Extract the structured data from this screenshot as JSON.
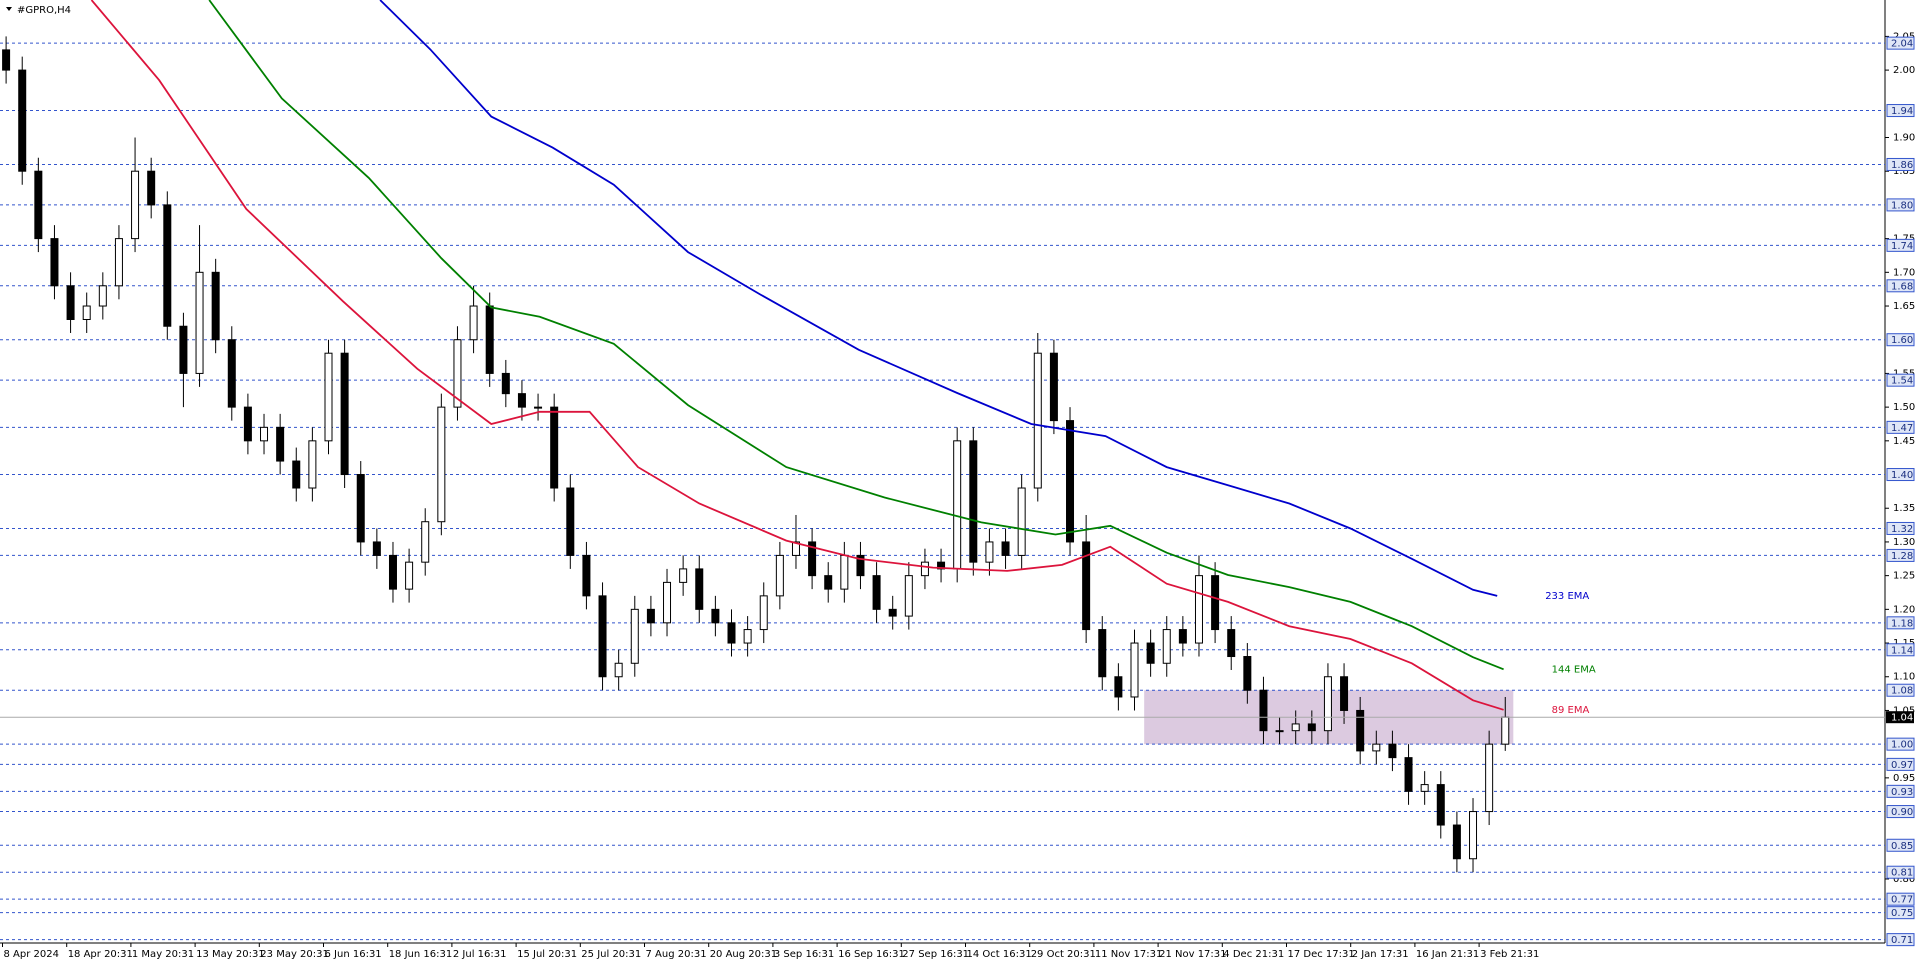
{
  "chart_data": {
    "type": "candlestick",
    "title": "#GPRO,H4",
    "open": [
      2.03,
      2.0,
      1.85,
      1.75,
      1.68,
      1.63,
      1.65,
      1.68,
      1.75,
      1.85,
      1.8,
      1.62,
      1.55,
      1.7,
      1.6,
      1.5,
      1.45,
      1.47,
      1.42,
      1.38,
      1.45,
      1.58,
      1.4,
      1.3,
      1.28,
      1.23,
      1.27,
      1.33,
      1.5,
      1.6,
      1.65,
      1.55,
      1.52,
      1.5,
      1.5,
      1.38,
      1.28,
      1.22,
      1.1,
      1.12,
      1.2,
      1.18,
      1.24,
      1.26,
      1.2,
      1.18,
      1.15,
      1.17,
      1.22,
      1.28,
      1.3,
      1.25,
      1.23,
      1.28,
      1.25,
      1.2,
      1.19,
      1.25,
      1.27,
      1.26,
      1.45,
      1.27,
      1.3,
      1.28,
      1.38,
      1.58,
      1.48,
      1.3,
      1.17,
      1.1,
      1.07,
      1.15,
      1.12,
      1.17,
      1.15,
      1.25,
      1.17,
      1.13,
      1.08,
      1.02,
      1.02,
      1.03,
      1.02,
      1.1,
      1.05,
      0.99,
      1.0,
      0.98,
      0.93,
      0.94,
      0.88,
      0.83,
      0.9,
      1.0
    ],
    "high": [
      2.05,
      2.02,
      1.87,
      1.77,
      1.7,
      1.67,
      1.7,
      1.77,
      1.9,
      1.87,
      1.82,
      1.64,
      1.77,
      1.72,
      1.62,
      1.52,
      1.49,
      1.49,
      1.44,
      1.47,
      1.6,
      1.6,
      1.42,
      1.32,
      1.3,
      1.29,
      1.35,
      1.52,
      1.62,
      1.68,
      1.67,
      1.57,
      1.54,
      1.52,
      1.52,
      1.4,
      1.3,
      1.24,
      1.14,
      1.22,
      1.22,
      1.26,
      1.28,
      1.28,
      1.22,
      1.2,
      1.19,
      1.24,
      1.3,
      1.34,
      1.32,
      1.27,
      1.3,
      1.3,
      1.27,
      1.22,
      1.27,
      1.29,
      1.29,
      1.47,
      1.47,
      1.32,
      1.32,
      1.4,
      1.61,
      1.6,
      1.5,
      1.34,
      1.19,
      1.12,
      1.17,
      1.17,
      1.19,
      1.19,
      1.28,
      1.27,
      1.19,
      1.15,
      1.1,
      1.04,
      1.05,
      1.05,
      1.12,
      1.12,
      1.07,
      1.02,
      1.02,
      1.0,
      0.96,
      0.96,
      0.9,
      0.92,
      1.02,
      1.07
    ],
    "low": [
      1.98,
      1.83,
      1.73,
      1.66,
      1.61,
      1.61,
      1.63,
      1.66,
      1.73,
      1.78,
      1.6,
      1.5,
      1.53,
      1.58,
      1.48,
      1.43,
      1.43,
      1.4,
      1.36,
      1.36,
      1.43,
      1.38,
      1.28,
      1.26,
      1.21,
      1.21,
      1.25,
      1.31,
      1.48,
      1.58,
      1.53,
      1.5,
      1.48,
      1.48,
      1.36,
      1.26,
      1.2,
      1.08,
      1.08,
      1.1,
      1.16,
      1.16,
      1.22,
      1.18,
      1.16,
      1.13,
      1.13,
      1.15,
      1.2,
      1.26,
      1.23,
      1.21,
      1.21,
      1.23,
      1.18,
      1.17,
      1.17,
      1.23,
      1.24,
      1.24,
      1.25,
      1.25,
      1.26,
      1.26,
      1.36,
      1.46,
      1.28,
      1.15,
      1.08,
      1.05,
      1.05,
      1.1,
      1.1,
      1.13,
      1.13,
      1.15,
      1.11,
      1.06,
      1.0,
      1.0,
      1.0,
      1.0,
      1.0,
      1.03,
      0.97,
      0.97,
      0.96,
      0.91,
      0.91,
      0.86,
      0.81,
      0.81,
      0.88,
      0.99
    ],
    "close": [
      2.0,
      1.85,
      1.75,
      1.68,
      1.63,
      1.65,
      1.68,
      1.75,
      1.85,
      1.8,
      1.62,
      1.55,
      1.7,
      1.6,
      1.5,
      1.45,
      1.47,
      1.42,
      1.38,
      1.45,
      1.58,
      1.4,
      1.3,
      1.28,
      1.23,
      1.27,
      1.33,
      1.5,
      1.6,
      1.65,
      1.55,
      1.52,
      1.5,
      1.5,
      1.38,
      1.28,
      1.22,
      1.1,
      1.12,
      1.2,
      1.18,
      1.24,
      1.26,
      1.2,
      1.18,
      1.15,
      1.17,
      1.22,
      1.28,
      1.3,
      1.25,
      1.23,
      1.28,
      1.25,
      1.2,
      1.19,
      1.25,
      1.27,
      1.26,
      1.45,
      1.27,
      1.3,
      1.28,
      1.38,
      1.58,
      1.48,
      1.3,
      1.17,
      1.1,
      1.07,
      1.15,
      1.12,
      1.17,
      1.15,
      1.25,
      1.17,
      1.13,
      1.08,
      1.02,
      1.02,
      1.03,
      1.02,
      1.1,
      1.05,
      0.99,
      1.0,
      0.98,
      0.93,
      0.94,
      0.88,
      0.83,
      0.9,
      1.0,
      1.04
    ],
    "series": [
      {
        "name": "233 EMA",
        "color": "#0000cc",
        "x": [
          23.2,
          26.3,
          30.1,
          33.9,
          37.7,
          42.3,
          46.8,
          52.9,
          59.0,
          63.6,
          68.2,
          72.0,
          75.8,
          79.6,
          83.4,
          87.2,
          91.0,
          92.5
        ],
        "values": [
          2.104,
          2.031,
          1.931,
          1.885,
          1.83,
          1.73,
          1.667,
          1.585,
          1.521,
          1.475,
          1.457,
          1.411,
          1.384,
          1.357,
          1.32,
          1.275,
          1.229,
          1.22
        ]
      },
      {
        "name": "144 EMA",
        "color": "#008000",
        "x": [
          12.6,
          17.1,
          22.5,
          27.0,
          30.1,
          33.1,
          37.7,
          42.3,
          48.4,
          54.5,
          60.5,
          65.1,
          68.5,
          72.0,
          75.8,
          79.6,
          83.4,
          87.2,
          91.0,
          92.9
        ],
        "values": [
          2.104,
          1.958,
          1.84,
          1.721,
          1.648,
          1.634,
          1.594,
          1.503,
          1.411,
          1.366,
          1.329,
          1.311,
          1.324,
          1.284,
          1.251,
          1.233,
          1.211,
          1.175,
          1.129,
          1.111
        ]
      },
      {
        "name": "89 EMA",
        "color": "#dc143c",
        "x": [
          5.3,
          9.5,
          14.9,
          20.9,
          25.5,
          30.1,
          33.1,
          36.2,
          39.2,
          43.0,
          48.4,
          52.9,
          57.5,
          62.1,
          65.5,
          68.5,
          72.0,
          75.8,
          79.6,
          83.4,
          87.2,
          91.0,
          92.9
        ],
        "values": [
          2.104,
          1.985,
          1.794,
          1.657,
          1.557,
          1.475,
          1.493,
          1.493,
          1.411,
          1.357,
          1.302,
          1.275,
          1.262,
          1.257,
          1.266,
          1.293,
          1.238,
          1.211,
          1.175,
          1.156,
          1.12,
          1.065,
          1.051
        ]
      }
    ],
    "zone": {
      "x": [
        70.6,
        93.5
      ],
      "y": [
        1,
        1.08
      ],
      "color": "#d8c4dd"
    },
    "last_price": 1.04,
    "ylim": [
      0.705,
      2.104
    ],
    "yticks": [
      2.05,
      {
        "value": 2,
        "label": "2.00"
      },
      {
        "value": 1.9,
        "label": "1.90"
      },
      1.85,
      1.75,
      {
        "value": 1.7,
        "label": "1.70"
      },
      1.65,
      1.55,
      {
        "value": 1.5,
        "label": "1.50"
      },
      1.45,
      1.35,
      {
        "value": 1.3,
        "label": "1.30"
      },
      1.25,
      {
        "value": 1.2,
        "label": "1.20"
      },
      1.15,
      {
        "value": 1.1,
        "label": "1.10"
      },
      1.05,
      0.95,
      {
        "value": 0.8,
        "label": "0.80"
      }
    ],
    "levels": [
      2.04,
      1.94,
      1.86,
      {
        "value": 1.8,
        "label": "1.80"
      },
      1.74,
      1.68,
      {
        "value": 1.6,
        "label": "1.60"
      },
      1.54,
      1.47,
      {
        "value": 1.4,
        "label": "1.40"
      },
      1.32,
      1.28,
      1.18,
      1.14,
      1.08,
      {
        "value": 1,
        "label": "1.00"
      },
      0.97,
      0.93,
      {
        "value": 0.9,
        "label": "0.90"
      },
      0.85,
      0.81,
      0.77,
      0.75,
      0.71
    ],
    "x_labels": [
      "8 Apr 2024",
      "18 Apr 20:31",
      "1 May 20:31",
      "13 May 20:31",
      "23 May 20:31",
      "6 Jun 16:31",
      "18 Jun 16:31",
      "2 Jul 16:31",
      "15 Jul 20:31",
      "25 Jul 20:31",
      "7 Aug 20:31",
      "20 Aug 20:31",
      "3 Sep 16:31",
      "16 Sep 16:31",
      "27 Sep 16:31",
      "14 Oct 16:31",
      "29 Oct 20:31",
      "11 Nov 17:31",
      "21 Nov 17:31",
      "4 Dec 21:31",
      "17 Dec 17:31",
      "2 Jan 17:31",
      "16 Jan 21:31",
      "3 Feb 21:31"
    ]
  }
}
